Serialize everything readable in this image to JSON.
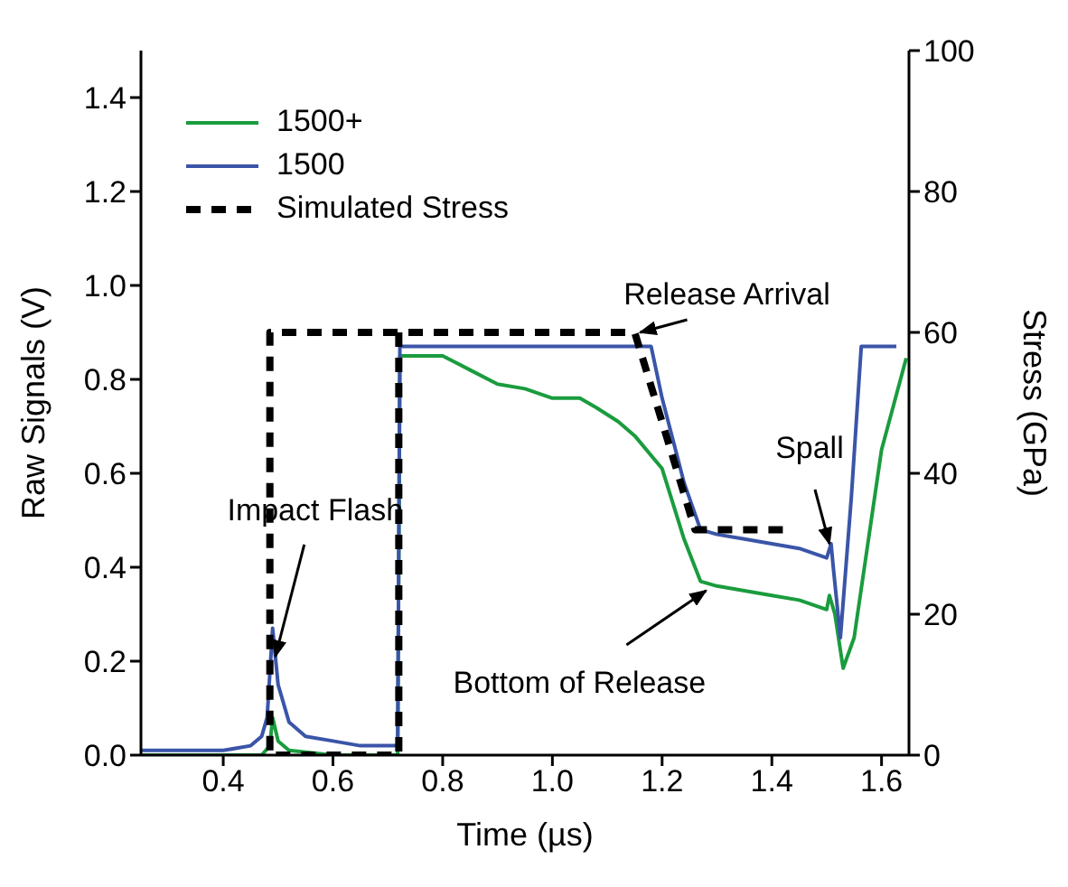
{
  "chart_data": {
    "type": "line",
    "xlabel": "Time (µs)",
    "ylabel": "Raw Signals (V)",
    "y2label": "Stress (GPa)",
    "xlim": [
      0.25,
      1.65
    ],
    "xticks": [
      0.4,
      0.6,
      0.8,
      {
        "value": 1,
        "label": "1.0"
      },
      1.2,
      1.4,
      1.6
    ],
    "ylim": [
      0,
      1.5
    ],
    "yticks": [
      {
        "value": 0,
        "label": "0.0"
      },
      0.2,
      0.4,
      0.6,
      0.8,
      {
        "value": 1,
        "label": "1.0"
      },
      1.2,
      1.4
    ],
    "y2lim": [
      0,
      100
    ],
    "y2ticks": [
      0,
      20,
      40,
      60,
      80,
      100
    ],
    "grid": false,
    "legend": "top left",
    "marker": "none",
    "series": [
      {
        "name": "1500+",
        "color": "#1a9c3e",
        "line_style": "solid",
        "x": [
          0.25,
          0.4,
          0.47,
          0.485,
          0.49,
          0.5,
          0.52,
          0.6,
          0.718,
          0.722,
          0.8,
          0.85,
          0.9,
          0.95,
          1.0,
          1.05,
          1.08,
          1.12,
          1.15,
          1.2,
          1.24,
          1.27,
          1.3,
          1.35,
          1.4,
          1.45,
          1.5,
          1.505,
          1.515,
          1.53,
          1.55,
          1.6,
          1.645
        ],
        "values": [
          0.0,
          0.0,
          0.0,
          0.02,
          0.08,
          0.03,
          0.01,
          0.0,
          0.0,
          0.85,
          0.85,
          0.82,
          0.79,
          0.78,
          0.76,
          0.76,
          0.74,
          0.71,
          0.68,
          0.61,
          0.46,
          0.37,
          0.36,
          0.35,
          0.34,
          0.33,
          0.31,
          0.34,
          0.3,
          0.185,
          0.25,
          0.65,
          0.845
        ]
      },
      {
        "name": "1500",
        "color": "#3a55a8",
        "line_style": "solid",
        "x": [
          0.25,
          0.3,
          0.35,
          0.4,
          0.45,
          0.47,
          0.48,
          0.49,
          0.5,
          0.52,
          0.55,
          0.6,
          0.65,
          0.7,
          0.718,
          0.722,
          0.8,
          0.9,
          1.0,
          1.1,
          1.18,
          1.2,
          1.24,
          1.27,
          1.3,
          1.35,
          1.4,
          1.45,
          1.5,
          1.508,
          1.512,
          1.525,
          1.545,
          1.563,
          1.627
        ],
        "values": [
          0.01,
          0.01,
          0.01,
          0.01,
          0.02,
          0.04,
          0.08,
          0.27,
          0.15,
          0.07,
          0.04,
          0.03,
          0.02,
          0.02,
          0.02,
          0.87,
          0.87,
          0.87,
          0.87,
          0.87,
          0.87,
          0.76,
          0.58,
          0.48,
          0.47,
          0.46,
          0.45,
          0.44,
          0.42,
          0.45,
          0.4,
          0.25,
          0.55,
          0.87,
          0.87
        ]
      },
      {
        "name": "Simulated Stress",
        "color": "#000000",
        "line_style": "dashed",
        "axis": "y2",
        "x": [
          0.72,
          0.72,
          0.485,
          0.485,
          1.15,
          1.26,
          1.43
        ],
        "values": [
          60,
          0,
          0,
          60,
          60,
          32,
          32
        ]
      }
    ],
    "annotations": [
      {
        "text": "Impact Flash",
        "x": 0.495,
        "y": 0.21
      },
      {
        "text": "Release Arrival",
        "x": 1.16,
        "y": 0.9
      },
      {
        "text": "Spall",
        "x": 1.505,
        "y": 0.45
      },
      {
        "text": "Bottom of Release",
        "x": 1.28,
        "y": 0.35
      }
    ]
  }
}
